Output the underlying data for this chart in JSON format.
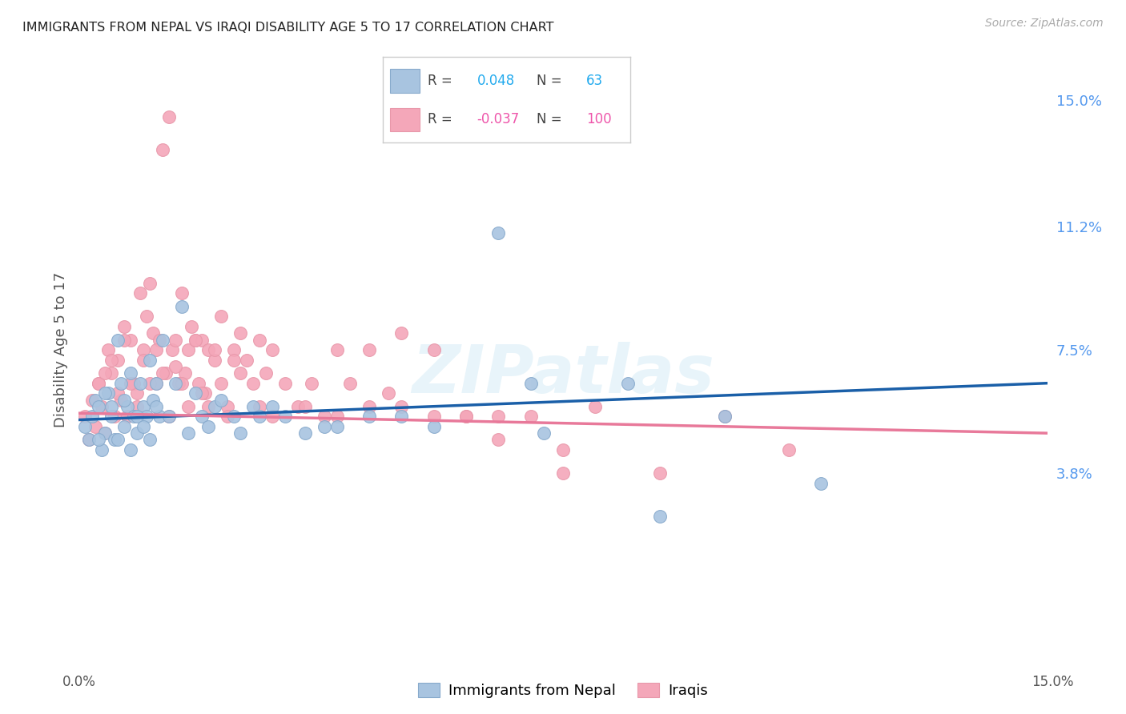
{
  "title": "IMMIGRANTS FROM NEPAL VS IRAQI DISABILITY AGE 5 TO 17 CORRELATION CHART",
  "source": "Source: ZipAtlas.com",
  "ylabel": "Disability Age 5 to 17",
  "xlim": [
    0.0,
    15.0
  ],
  "ylim": [
    -1.5,
    16.5
  ],
  "ytick_labels": [
    "3.8%",
    "7.5%",
    "11.2%",
    "15.0%"
  ],
  "ytick_values": [
    3.8,
    7.5,
    11.2,
    15.0
  ],
  "nepal_R": 0.048,
  "nepal_N": 63,
  "iraq_R": -0.037,
  "iraq_N": 100,
  "nepal_color": "#a8c4e0",
  "iraq_color": "#f4a7b9",
  "nepal_line_color": "#1a5fa8",
  "iraq_line_color": "#e8799a",
  "nepal_points_x": [
    0.1,
    0.15,
    0.2,
    0.25,
    0.3,
    0.35,
    0.4,
    0.45,
    0.5,
    0.55,
    0.6,
    0.65,
    0.7,
    0.75,
    0.8,
    0.85,
    0.9,
    0.95,
    1.0,
    1.05,
    1.1,
    1.15,
    1.2,
    1.25,
    1.3,
    1.4,
    1.5,
    1.6,
    1.7,
    1.8,
    1.9,
    2.0,
    2.1,
    2.2,
    2.4,
    2.5,
    2.7,
    2.8,
    3.0,
    3.2,
    3.5,
    3.8,
    4.0,
    4.5,
    5.0,
    5.5,
    6.5,
    7.0,
    7.2,
    8.5,
    9.0,
    10.0,
    11.5,
    0.3,
    0.4,
    0.5,
    0.6,
    0.7,
    0.8,
    0.9,
    1.0,
    1.1,
    1.2
  ],
  "nepal_points_y": [
    5.2,
    4.8,
    5.5,
    6.0,
    5.8,
    4.5,
    5.0,
    6.2,
    5.5,
    4.8,
    7.8,
    6.5,
    5.2,
    5.8,
    6.8,
    5.5,
    5.0,
    6.5,
    5.8,
    5.5,
    7.2,
    6.0,
    6.5,
    5.5,
    7.8,
    5.5,
    6.5,
    8.8,
    5.0,
    6.2,
    5.5,
    5.2,
    5.8,
    6.0,
    5.5,
    5.0,
    5.8,
    5.5,
    5.8,
    5.5,
    5.0,
    5.2,
    5.2,
    5.5,
    5.5,
    5.2,
    11.0,
    6.5,
    5.0,
    6.5,
    2.5,
    5.5,
    3.5,
    4.8,
    6.2,
    5.8,
    4.8,
    6.0,
    4.5,
    5.5,
    5.2,
    4.8,
    5.8
  ],
  "iraq_points_x": [
    0.1,
    0.15,
    0.2,
    0.25,
    0.3,
    0.35,
    0.4,
    0.45,
    0.5,
    0.55,
    0.6,
    0.65,
    0.7,
    0.75,
    0.8,
    0.85,
    0.9,
    0.95,
    1.0,
    1.05,
    1.1,
    1.15,
    1.2,
    1.25,
    1.3,
    1.35,
    1.4,
    1.45,
    1.5,
    1.55,
    1.6,
    1.65,
    1.7,
    1.75,
    1.8,
    1.85,
    1.9,
    1.95,
    2.0,
    2.1,
    2.2,
    2.3,
    2.4,
    2.5,
    2.6,
    2.7,
    2.8,
    2.9,
    3.0,
    3.2,
    3.4,
    3.6,
    3.8,
    4.0,
    4.2,
    4.5,
    4.8,
    5.0,
    5.5,
    6.0,
    6.5,
    7.0,
    7.5,
    8.0,
    9.0,
    10.0,
    11.0,
    0.3,
    0.4,
    0.5,
    0.6,
    0.7,
    0.8,
    0.9,
    1.0,
    1.1,
    1.2,
    1.3,
    1.4,
    1.5,
    1.6,
    1.7,
    1.8,
    1.9,
    2.0,
    2.1,
    2.2,
    2.3,
    2.4,
    2.5,
    2.8,
    3.0,
    3.5,
    4.0,
    4.5,
    5.0,
    5.5,
    6.0,
    6.5,
    7.5
  ],
  "iraq_points_y": [
    5.5,
    4.8,
    6.0,
    5.2,
    6.5,
    5.8,
    5.0,
    7.5,
    6.8,
    5.5,
    7.2,
    6.0,
    8.2,
    5.5,
    7.8,
    6.5,
    6.2,
    9.2,
    7.5,
    8.5,
    9.5,
    8.0,
    6.5,
    7.8,
    13.5,
    6.8,
    14.5,
    7.5,
    7.8,
    6.5,
    9.2,
    6.8,
    7.5,
    8.2,
    7.8,
    6.5,
    7.8,
    6.2,
    7.5,
    7.2,
    8.5,
    5.8,
    7.5,
    8.0,
    7.2,
    6.5,
    7.8,
    6.8,
    7.5,
    6.5,
    5.8,
    6.5,
    5.5,
    7.5,
    6.5,
    5.8,
    6.2,
    8.0,
    7.5,
    5.5,
    4.8,
    5.5,
    4.5,
    5.8,
    3.8,
    5.5,
    4.5,
    6.5,
    6.8,
    7.2,
    6.2,
    7.8,
    6.5,
    5.8,
    7.2,
    6.5,
    7.5,
    6.8,
    5.5,
    7.0,
    6.5,
    5.8,
    7.8,
    6.2,
    5.8,
    7.5,
    6.5,
    5.5,
    7.2,
    6.8,
    5.8,
    5.5,
    5.8,
    5.5,
    7.5,
    5.8,
    5.5,
    5.5,
    5.5,
    3.8
  ],
  "watermark_text": "ZIPatlas",
  "background_color": "#ffffff",
  "grid_color": "#e8e8e8"
}
